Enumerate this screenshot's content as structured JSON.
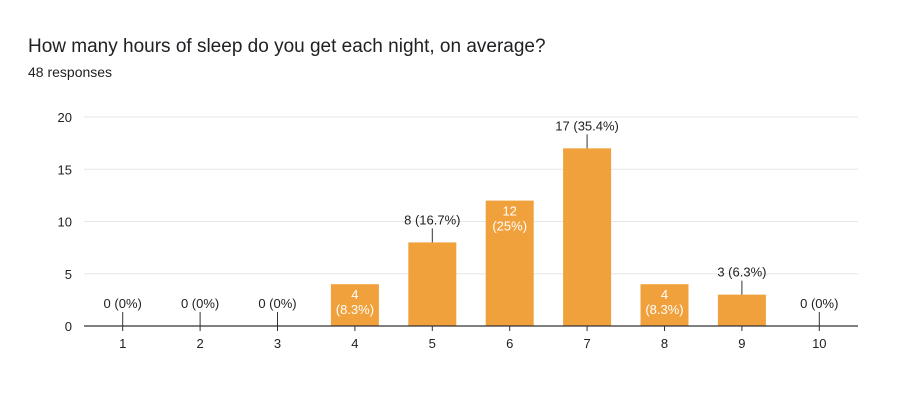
{
  "header": {
    "title": "How many hours of sleep do you get each night, on average?",
    "subtitle": "48 responses"
  },
  "colors": {
    "bar": "#F1A13C",
    "grid": "#E6E6E6",
    "axis": "#333333",
    "text": "#202124",
    "label_inside": "#FFFFFF"
  },
  "chart_data": {
    "type": "bar",
    "title": "How many hours of sleep do you get each night, on average?",
    "subtitle": "48 responses",
    "categories": [
      "1",
      "2",
      "3",
      "4",
      "5",
      "6",
      "7",
      "8",
      "9",
      "10"
    ],
    "values": [
      0,
      0,
      0,
      4,
      8,
      12,
      17,
      4,
      3,
      0
    ],
    "data_labels": [
      [
        "0 (0%)"
      ],
      [
        "0 (0%)"
      ],
      [
        "0 (0%)"
      ],
      [
        "4",
        "(8.3%)"
      ],
      [
        "8 (16.7%)"
      ],
      [
        "12",
        "(25%)"
      ],
      [
        "17 (35.4%)"
      ],
      [
        "4",
        "(8.3%)"
      ],
      [
        "3 (6.3%)"
      ],
      [
        "0 (0%)"
      ]
    ],
    "label_inside": [
      false,
      false,
      false,
      true,
      false,
      true,
      false,
      true,
      false,
      false
    ],
    "y_ticks": [
      0,
      5,
      10,
      15,
      20
    ],
    "ylim": [
      0,
      20
    ],
    "grid": true,
    "legend": "none"
  }
}
